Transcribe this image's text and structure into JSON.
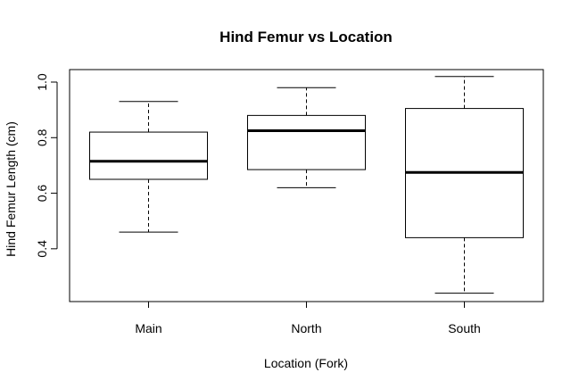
{
  "chart_data": {
    "type": "box",
    "title": "Hind Femur vs Location",
    "xlabel": "Location (Fork)",
    "ylabel": "Hind Femur Length (cm)",
    "categories": [
      "Main",
      "North",
      "South"
    ],
    "y_ticks": [
      0.4,
      0.6,
      0.8,
      1.0
    ],
    "y_tick_labels": [
      "0.4",
      "0.6",
      "0.8",
      "1.0"
    ],
    "ylim": [
      0.21,
      1.045
    ],
    "grid": false,
    "boxes": [
      {
        "name": "Main",
        "whisker_low": 0.46,
        "q1": 0.65,
        "median": 0.715,
        "q3": 0.82,
        "whisker_high": 0.93
      },
      {
        "name": "North",
        "whisker_low": 0.62,
        "q1": 0.685,
        "median": 0.825,
        "q3": 0.88,
        "whisker_high": 0.98
      },
      {
        "name": "South",
        "whisker_low": 0.24,
        "q1": 0.44,
        "median": 0.675,
        "q3": 0.905,
        "whisker_high": 1.02
      }
    ],
    "colors": {
      "box_stroke": "#000000",
      "box_fill": "#ffffff",
      "background": "#ffffff"
    }
  }
}
